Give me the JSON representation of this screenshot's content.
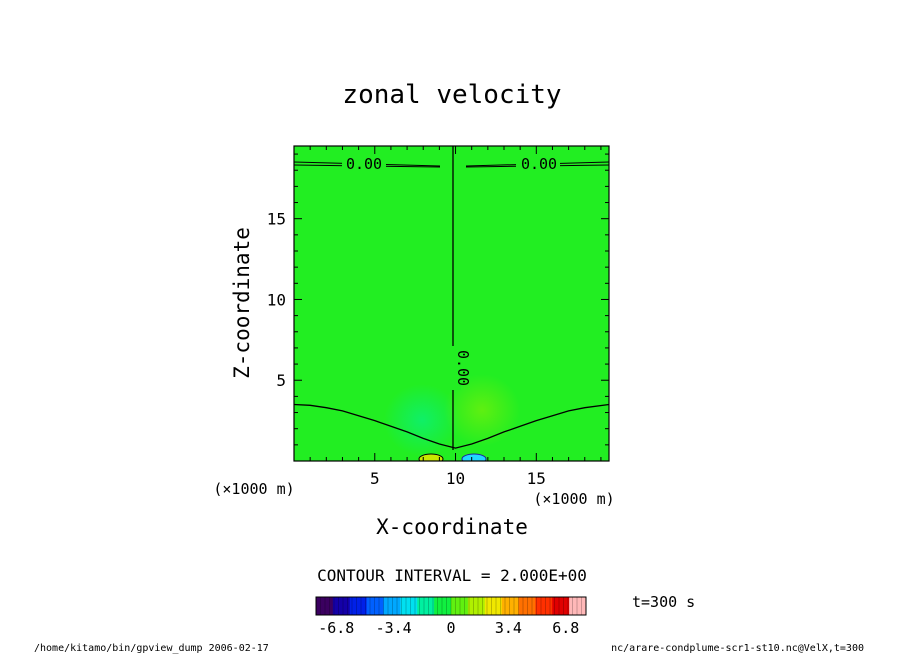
{
  "chart_data": {
    "type": "heatmap",
    "title": "zonal velocity",
    "xlabel": "X-coordinate",
    "ylabel": "Z-coordinate",
    "x_unit": "(×1000 m)",
    "y_unit": "(×1000 m)",
    "xlim": [
      0,
      19.5
    ],
    "ylim": [
      0,
      19.5
    ],
    "x_ticks": [
      5,
      10,
      15
    ],
    "y_ticks": [
      5,
      10,
      15
    ],
    "contour_interval": "CONTOUR INTERVAL = 2.000E+00",
    "time_label": "t=300 s",
    "contour_labels": [
      "0.00",
      "0.00",
      "0.00"
    ],
    "contour_curve_zero": {
      "x": [
        0,
        1,
        2,
        3,
        4,
        5,
        6,
        7,
        8,
        9,
        10,
        11,
        12,
        13,
        14,
        15,
        16,
        17,
        18,
        19.5
      ],
      "z": [
        3.5,
        3.45,
        3.3,
        3.1,
        2.8,
        2.5,
        2.15,
        1.8,
        1.4,
        1.05,
        0.8,
        1.05,
        1.4,
        1.8,
        2.15,
        2.5,
        2.8,
        3.1,
        3.3,
        3.5
      ]
    },
    "colorbar": {
      "ticks": [
        "-6.8",
        "-3.4",
        "0",
        "3.4",
        "6.8"
      ],
      "range": [
        -8,
        8
      ],
      "colors": [
        "#3b0060",
        "#1400a8",
        "#0020e8",
        "#0060ff",
        "#00a8ff",
        "#00e0f0",
        "#00f0a0",
        "#10f040",
        "#60f010",
        "#b0f000",
        "#f0e800",
        "#ffb000",
        "#ff7000",
        "#ff3000",
        "#e00000",
        "#ffb8b8"
      ]
    },
    "field_colors": {
      "background": "#22ee22",
      "negative_blob": "#00f0a0",
      "positive_blob": "#9cf000"
    }
  },
  "footer": {
    "left": "/home/kitamo/bin/gpview_dump  2006-02-17",
    "right": "nc/arare-condplume-scr1-st10.nc@VelX,t=300"
  }
}
